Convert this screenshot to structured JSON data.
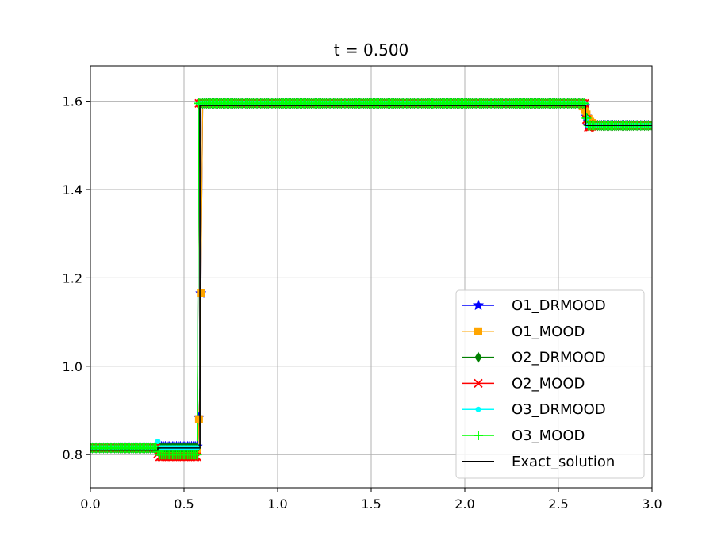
{
  "chart_data": {
    "type": "line",
    "title": "t = 0.500",
    "xlabel": "",
    "ylabel": "",
    "xlim": [
      0.0,
      3.0
    ],
    "ylim": [
      0.725,
      1.68
    ],
    "xticks": [
      0.0,
      0.5,
      1.0,
      1.5,
      2.0,
      2.5,
      3.0
    ],
    "xtick_labels": [
      "0.0",
      "0.5",
      "1.0",
      "1.5",
      "2.0",
      "2.5",
      "3.0"
    ],
    "yticks": [
      0.8,
      1.0,
      1.2,
      1.4,
      1.6
    ],
    "ytick_labels": [
      "0.8",
      "1.0",
      "1.2",
      "1.4",
      "1.6"
    ],
    "grid": true,
    "legend_position": "lower-right",
    "series": [
      {
        "name": "O1_DRMOOD",
        "color": "#0000ff",
        "marker": "star",
        "line": true,
        "x": [
          0.0,
          0.35,
          0.37,
          0.55,
          0.575,
          0.585,
          0.6,
          1.0,
          2.0,
          2.63,
          2.645,
          2.655,
          2.7,
          3.0
        ],
        "y": [
          0.815,
          0.815,
          0.818,
          0.818,
          0.818,
          0.95,
          1.595,
          1.595,
          1.595,
          1.595,
          1.585,
          1.545,
          1.545,
          1.545
        ]
      },
      {
        "name": "O1_MOOD",
        "color": "#ffa500",
        "marker": "square",
        "line": true,
        "x": [
          0.0,
          0.35,
          0.37,
          0.55,
          0.575,
          0.585,
          0.6,
          1.0,
          2.0,
          2.62,
          2.635,
          2.65,
          2.665,
          2.7,
          3.0
        ],
        "y": [
          0.815,
          0.815,
          0.81,
          0.81,
          0.81,
          0.95,
          1.595,
          1.595,
          1.595,
          1.595,
          1.585,
          1.57,
          1.555,
          1.545,
          1.545
        ]
      },
      {
        "name": "O2_DRMOOD",
        "color": "#008000",
        "marker": "diamond",
        "line": true,
        "x": [
          0.0,
          0.35,
          0.37,
          0.57,
          0.58,
          0.6,
          1.0,
          2.0,
          2.64,
          2.655,
          2.7,
          3.0
        ],
        "y": [
          0.815,
          0.815,
          0.815,
          0.815,
          1.595,
          1.595,
          1.595,
          1.595,
          1.595,
          1.545,
          1.545,
          1.545
        ]
      },
      {
        "name": "O2_MOOD",
        "color": "#ff0000",
        "marker": "x",
        "line": true,
        "x": [
          0.0,
          0.35,
          0.365,
          0.57,
          0.58,
          0.6,
          1.0,
          2.0,
          2.64,
          2.655,
          2.7,
          3.0
        ],
        "y": [
          0.815,
          0.815,
          0.795,
          0.795,
          1.595,
          1.595,
          1.595,
          1.595,
          1.595,
          1.54,
          1.545,
          1.545
        ]
      },
      {
        "name": "O3_DRMOOD",
        "color": "#00ffff",
        "marker": "dot",
        "line": true,
        "x": [
          0.0,
          0.35,
          0.36,
          0.37,
          0.57,
          0.58,
          0.6,
          1.0,
          2.0,
          2.64,
          2.655,
          2.7,
          3.0
        ],
        "y": [
          0.815,
          0.815,
          0.83,
          0.815,
          0.815,
          1.595,
          1.595,
          1.595,
          1.595,
          1.595,
          1.545,
          1.545,
          1.545
        ]
      },
      {
        "name": "O3_MOOD",
        "color": "#00ff00",
        "marker": "plus",
        "line": true,
        "x": [
          0.0,
          0.35,
          0.37,
          0.57,
          0.58,
          0.6,
          1.0,
          2.0,
          2.64,
          2.655,
          2.7,
          3.0
        ],
        "y": [
          0.815,
          0.815,
          0.8,
          0.8,
          1.595,
          1.595,
          1.595,
          1.595,
          1.595,
          1.545,
          1.545,
          1.545
        ]
      },
      {
        "name": "Exact_solution",
        "color": "#000000",
        "marker": "none",
        "line": true,
        "x": [
          0.0,
          0.36,
          0.36,
          0.585,
          0.585,
          2.645,
          2.645,
          3.0
        ],
        "y": [
          0.81,
          0.81,
          0.815,
          0.815,
          1.59,
          1.59,
          1.545,
          1.545
        ]
      }
    ]
  }
}
